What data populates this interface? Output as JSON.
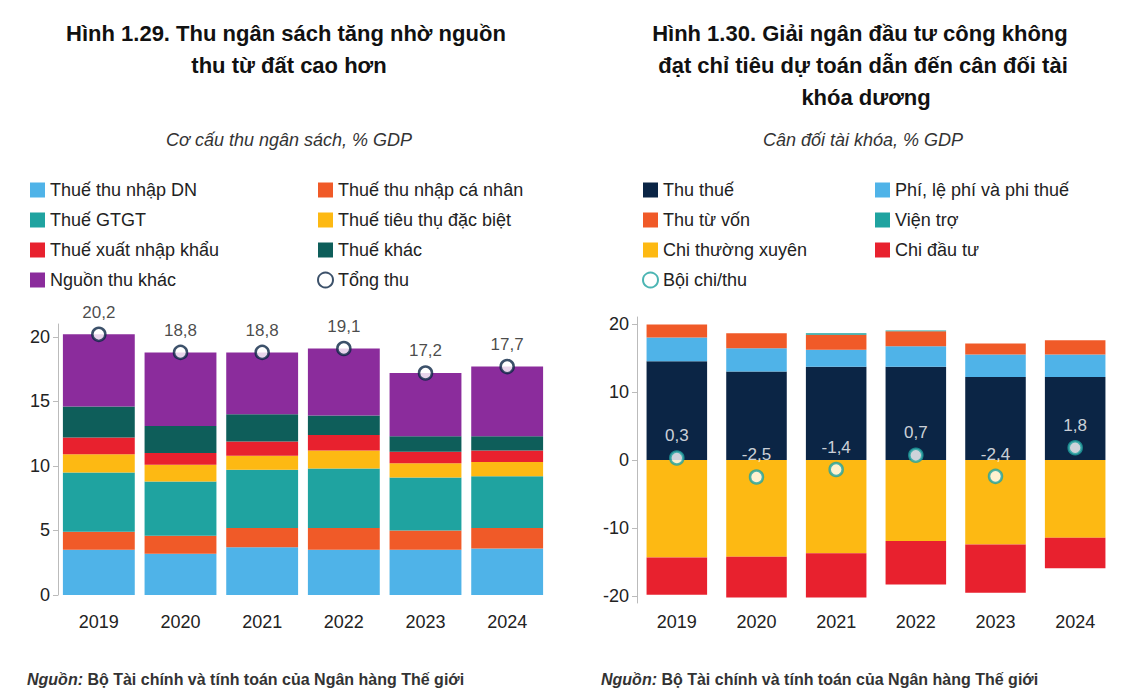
{
  "chart_data": [
    {
      "type": "bar",
      "title": "Hình 1.29. Thu ngân sách tăng nhờ nguồn thu từ đất cao hơn",
      "subtitle": "Cơ cấu thu ngân sách, % GDP",
      "source": "Nguồn: Bộ Tài chính và tính toán của Ngân hàng Thế giới",
      "categories": [
        "2019",
        "2020",
        "2021",
        "2022",
        "2023",
        "2024"
      ],
      "stacked": true,
      "legend": "top",
      "grid": false,
      "ylim": [
        0,
        21
      ],
      "yticks": [
        0,
        5,
        10,
        15,
        20
      ],
      "series": [
        {
          "name": "Thuế thu nhập DN",
          "color": "#4fb3e8",
          "values": [
            3.5,
            3.2,
            3.7,
            3.5,
            3.5,
            3.6
          ]
        },
        {
          "name": "Thuế thu nhập cá nhân",
          "color": "#f05a28",
          "values": [
            1.4,
            1.4,
            1.5,
            1.7,
            1.5,
            1.6
          ]
        },
        {
          "name": "Thuế GTGT",
          "color": "#1fa3a0",
          "values": [
            4.6,
            4.2,
            4.5,
            4.6,
            4.1,
            4.0
          ]
        },
        {
          "name": "Thuế tiêu thụ đặc biệt",
          "color": "#fdb913",
          "values": [
            1.4,
            1.3,
            1.1,
            1.4,
            1.1,
            1.1
          ]
        },
        {
          "name": "Thuế xuất nhập khẩu",
          "color": "#e8212e",
          "values": [
            1.3,
            0.9,
            1.1,
            1.2,
            0.9,
            0.9
          ]
        },
        {
          "name": "Thuế khác",
          "color": "#0e5e5a",
          "values": [
            2.4,
            2.1,
            2.1,
            1.5,
            1.2,
            1.1
          ]
        },
        {
          "name": "Nguồn thu khác",
          "color": "#8b2c9c",
          "values": [
            5.6,
            5.7,
            4.8,
            5.2,
            4.9,
            5.4
          ]
        },
        {
          "name": "Tổng thu",
          "type": "scatter",
          "marker": "circle",
          "color": "#0b2545",
          "data_labels": true,
          "values": [
            20.2,
            18.8,
            18.8,
            19.1,
            17.2,
            17.7
          ],
          "value_labels": [
            "20,2",
            "18,8",
            "18,8",
            "19,1",
            "17,2",
            "17,7"
          ]
        }
      ]
    },
    {
      "type": "bar",
      "title": "Hình 1.30. Giải ngân đầu tư công không đạt chỉ tiêu dự toán dẫn đến cân đối tài khóa dương",
      "subtitle": "Cân đối tài khóa, % GDP",
      "source": "Nguồn: Bộ Tài chính và tính toán của Ngân hàng Thế giới",
      "categories": [
        "2019",
        "2020",
        "2021",
        "2022",
        "2023",
        "2024"
      ],
      "stacked": true,
      "legend": "top",
      "grid": false,
      "ylim": [
        -21,
        21
      ],
      "yticks": [
        -20,
        -10,
        0,
        10,
        20
      ],
      "series": [
        {
          "name": "Thu thuế",
          "color": "#0b2545",
          "values": [
            14.5,
            13.0,
            13.7,
            13.7,
            12.2,
            12.2
          ]
        },
        {
          "name": "Phí, lệ phí và phi thuế",
          "color": "#4fb3e8",
          "values": [
            3.5,
            3.4,
            2.5,
            3.0,
            3.3,
            3.3
          ]
        },
        {
          "name": "Thu từ vốn",
          "color": "#f05a28",
          "values": [
            1.9,
            2.2,
            2.2,
            2.2,
            1.6,
            2.1
          ]
        },
        {
          "name": "Viện trợ",
          "color": "#1fa3a0",
          "values": [
            0.0,
            0.0,
            0.2,
            0.1,
            0.0,
            0.0
          ]
        },
        {
          "name": "Chi thường xuyên",
          "color": "#fdb913",
          "values": [
            -14.3,
            -14.2,
            -13.7,
            -11.9,
            -12.4,
            -11.4
          ]
        },
        {
          "name": "Chi đầu tư",
          "color": "#e8212e",
          "values": [
            -5.5,
            -6.0,
            -6.5,
            -6.4,
            -7.1,
            -4.5
          ]
        },
        {
          "name": "Bội chi/thu",
          "type": "scatter",
          "marker": "circle",
          "color": "#1fa3a0",
          "data_labels": true,
          "values": [
            0.3,
            -2.5,
            -1.4,
            0.7,
            -2.4,
            1.8
          ],
          "value_labels": [
            "0,3",
            "-2,5",
            "-1,4",
            "0,7",
            "-2,4",
            "1,8"
          ]
        }
      ]
    }
  ]
}
